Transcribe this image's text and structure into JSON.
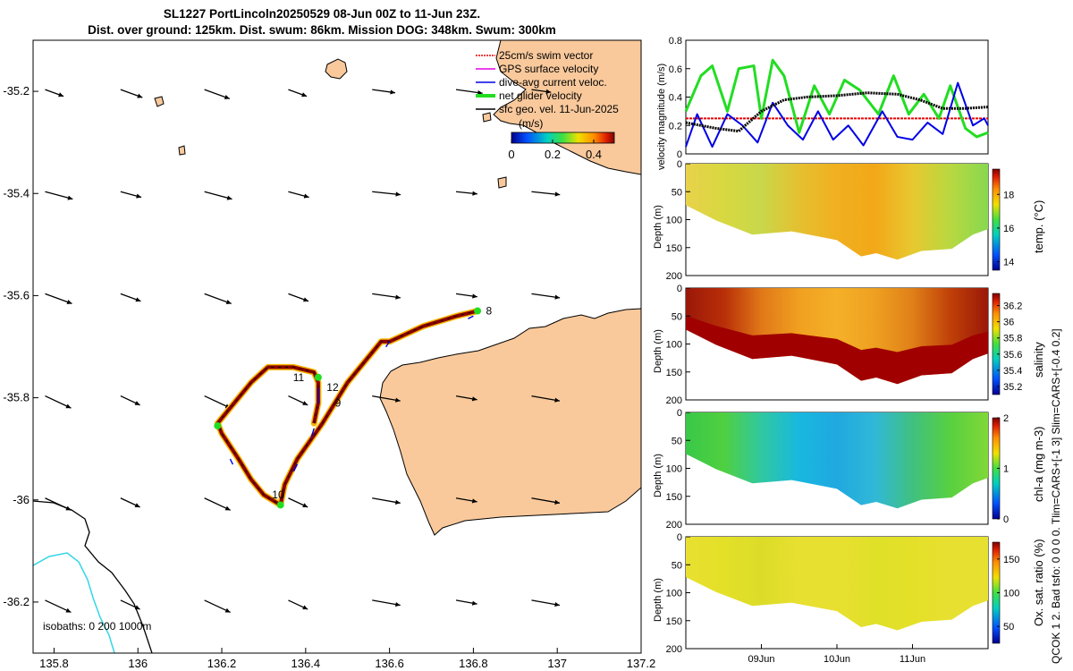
{
  "title": {
    "line1": "SL1227 PortLincoln20250529 08-Jun 00Z to 11-Jun 23Z.",
    "line2": "Dist. over ground: 125km. Dist. swum: 86km. Mission DOG: 348km. Swum: 300km"
  },
  "colors": {
    "land": "#f9c99c",
    "track": "#8b0000",
    "track_edge": "#f5b800",
    "isobath_200": "#000000",
    "isobath_1000": "#33d6e6",
    "swim": "#e60000",
    "gps": "#e600e6",
    "dive": "#0000e6",
    "net": "#22dd22",
    "sfc": "#000000"
  },
  "chart_data": [
    {
      "type": "map",
      "name": "glider track map",
      "xticks": [
        "135.8",
        "136",
        "136.2",
        "136.4",
        "136.6",
        "136.8",
        "137",
        "137.2"
      ],
      "xtick_values": [
        135.8,
        136.0,
        136.2,
        136.4,
        136.6,
        136.8,
        137.0,
        137.2
      ],
      "yticks": [
        "-35.2",
        "-35.4",
        "-35.6",
        "-35.8",
        "-36",
        "-36.2"
      ],
      "ytick_values": [
        -35.2,
        -35.4,
        -35.6,
        -35.8,
        -36.0,
        -36.2
      ],
      "xlim": [
        135.75,
        137.2
      ],
      "ylim": [
        -36.3,
        -35.1
      ],
      "isobaths_label": "isobaths: 0   200  1000m",
      "legend": [
        {
          "key": "swim",
          "label": "25cm/s swim vector"
        },
        {
          "key": "gps",
          "label": "GPS surface velocity"
        },
        {
          "key": "dive",
          "label": "dive-avg current veloc."
        },
        {
          "key": "net",
          "label": "net glider velocity"
        },
        {
          "key": "sfc",
          "label": "sfc geo. vel. 11-Jun-2025"
        }
      ],
      "colorbar": {
        "label": "(m/s)",
        "range": [
          0,
          0.5
        ],
        "ticks": [
          "0",
          "0.2",
          "0.4"
        ],
        "tick_values": [
          0,
          0.2,
          0.4
        ]
      },
      "track_lonlat": [
        [
          136.81,
          -35.63
        ],
        [
          136.76,
          -35.64
        ],
        [
          136.68,
          -35.66
        ],
        [
          136.6,
          -35.69
        ],
        [
          136.58,
          -35.69
        ],
        [
          136.5,
          -35.77
        ],
        [
          136.44,
          -35.85
        ],
        [
          136.38,
          -35.92
        ],
        [
          136.35,
          -35.97
        ],
        [
          136.34,
          -36.01
        ],
        [
          136.3,
          -35.99
        ],
        [
          136.27,
          -35.96
        ],
        [
          136.24,
          -35.92
        ],
        [
          136.2,
          -35.87
        ],
        [
          136.19,
          -35.85
        ],
        [
          136.22,
          -35.82
        ],
        [
          136.27,
          -35.77
        ],
        [
          136.31,
          -35.74
        ],
        [
          136.37,
          -35.74
        ],
        [
          136.42,
          -35.75
        ],
        [
          136.43,
          -35.77
        ],
        [
          136.43,
          -35.81
        ],
        [
          136.42,
          -35.85
        ]
      ],
      "waypoints": [
        {
          "label": "8",
          "lon": 136.83,
          "lat": -35.63
        },
        {
          "label": "9",
          "lon": 136.47,
          "lat": -35.81
        },
        {
          "label": "10",
          "lon": 136.32,
          "lat": -35.99
        },
        {
          "label": "11",
          "lon": 136.37,
          "lat": -35.76
        },
        {
          "label": "12",
          "lon": 136.45,
          "lat": -35.78
        }
      ],
      "geo_vectors_lonlat_grid": {
        "lons": [
          135.8,
          135.98,
          136.18,
          136.38,
          136.58,
          136.78,
          136.96
        ],
        "lats": [
          -35.2,
          -35.4,
          -35.6,
          -35.8,
          -36.0,
          -36.2
        ]
      }
    },
    {
      "type": "line",
      "name": "velocity magnitude",
      "ylabel": "velocity magnitude (m/s)",
      "ylim": [
        0,
        0.8
      ],
      "yticks": [
        "0",
        "0.2",
        "0.4",
        "0.6",
        "0.8"
      ],
      "ytick_values": [
        0,
        0.2,
        0.4,
        0.6,
        0.8
      ],
      "t_range_days": [
        0,
        4
      ],
      "series": [
        {
          "name": "swim 25cm/s",
          "color_key": "swim",
          "t": [
            0,
            4
          ],
          "values": [
            0.25,
            0.25
          ]
        },
        {
          "name": "net glider velocity",
          "color_key": "net",
          "t": [
            0,
            0.2,
            0.35,
            0.55,
            0.7,
            0.9,
            1.0,
            1.15,
            1.3,
            1.5,
            1.7,
            1.9,
            2.1,
            2.3,
            2.55,
            2.75,
            2.95,
            3.15,
            3.35,
            3.5,
            3.7,
            3.85,
            4.0
          ],
          "values": [
            0.3,
            0.55,
            0.62,
            0.3,
            0.6,
            0.62,
            0.25,
            0.66,
            0.55,
            0.15,
            0.48,
            0.28,
            0.52,
            0.45,
            0.28,
            0.55,
            0.28,
            0.42,
            0.25,
            0.48,
            0.18,
            0.12,
            0.15
          ]
        },
        {
          "name": "dive-avg current",
          "color_key": "dive",
          "t": [
            0,
            0.15,
            0.35,
            0.55,
            0.75,
            0.95,
            1.15,
            1.35,
            1.55,
            1.75,
            1.95,
            2.15,
            2.35,
            2.6,
            2.8,
            3.0,
            3.2,
            3.4,
            3.6,
            3.8,
            3.95,
            4.0
          ],
          "values": [
            0.05,
            0.28,
            0.05,
            0.28,
            0.2,
            0.08,
            0.36,
            0.2,
            0.1,
            0.3,
            0.1,
            0.2,
            0.06,
            0.3,
            0.12,
            0.1,
            0.22,
            0.14,
            0.5,
            0.2,
            0.25,
            0.2
          ]
        },
        {
          "name": "sfc geo. vel.",
          "color_key": "sfc",
          "t": [
            0,
            0.4,
            0.7,
            1.0,
            1.3,
            1.6,
            2.0,
            2.4,
            2.8,
            3.1,
            3.4,
            3.7,
            4.0
          ],
          "values": [
            0.22,
            0.18,
            0.16,
            0.3,
            0.38,
            0.4,
            0.41,
            0.43,
            0.42,
            0.38,
            0.32,
            0.32,
            0.33
          ]
        }
      ]
    },
    {
      "type": "heatmap",
      "name": "temperature section",
      "cbar_label": "temp. (°C)",
      "clim": [
        13.5,
        19.5
      ],
      "cbar_ticks": [
        "14",
        "16",
        "18"
      ],
      "cbar_tick_values": [
        14,
        16,
        18
      ],
      "ylabel": "Depth (m)",
      "yticks": [
        "0",
        "50",
        "100",
        "150",
        "200"
      ],
      "ylim": [
        0,
        200
      ]
    },
    {
      "type": "heatmap",
      "name": "salinity section",
      "cbar_label": "salinity",
      "clim": [
        35.1,
        36.35
      ],
      "cbar_ticks": [
        "35.2",
        "35.4",
        "35.6",
        "35.8",
        "36",
        "36.2"
      ],
      "cbar_tick_values": [
        35.2,
        35.4,
        35.6,
        35.8,
        36.0,
        36.2
      ],
      "ylabel": "Depth (m)",
      "yticks": [
        "0",
        "50",
        "100",
        "150",
        "200"
      ],
      "ylim": [
        0,
        200
      ]
    },
    {
      "type": "heatmap",
      "name": "chlorophyll section",
      "cbar_label": "chl-a (mg m-3)",
      "clim": [
        0,
        2
      ],
      "cbar_ticks": [
        "0",
        "1",
        "2"
      ],
      "cbar_tick_values": [
        0,
        1,
        2
      ],
      "ylabel": "Depth (m)",
      "yticks": [
        "0",
        "50",
        "100",
        "150",
        "200"
      ],
      "ylim": [
        0,
        200
      ]
    },
    {
      "type": "heatmap",
      "name": "oxygen saturation section",
      "cbar_label": "Ox. sat. ratio (%)",
      "clim": [
        25,
        175
      ],
      "cbar_ticks": [
        "50",
        "100",
        "150"
      ],
      "cbar_tick_values": [
        50,
        100,
        150
      ],
      "ylabel": "Depth (m)",
      "yticks": [
        "0",
        "50",
        "100",
        "150",
        "200"
      ],
      "ylim": [
        0,
        200
      ],
      "xticks": [
        "09Jun",
        "10Jun",
        "11Jun"
      ],
      "xtick_values_days": [
        1,
        2,
        3
      ]
    }
  ],
  "side_labels": {
    "qc": "QCOK 1  2. Bad tsfo: 0  0  0  0. Tlim=CARS+[-1 3] Slim=CARS+[-0.4 0.2]"
  }
}
